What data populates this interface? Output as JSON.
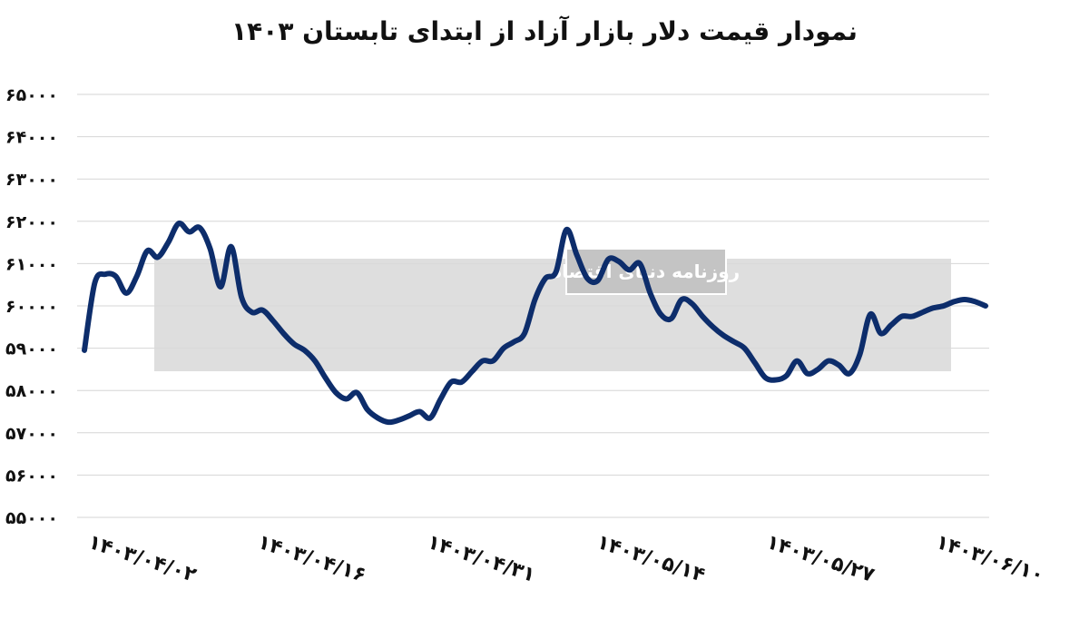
{
  "chart_data": {
    "type": "line",
    "title": "نمودار قیمت دلار بازار آزاد از ابتدای تابستان ۱۴۰۳",
    "xlabel": "",
    "ylabel": "",
    "ylim": [
      55000,
      65000
    ],
    "y_ticks": [
      "۶۵۰۰۰",
      "۶۴۰۰۰",
      "۶۳۰۰۰",
      "۶۲۰۰۰",
      "۶۱۰۰۰",
      "۶۰۰۰۰",
      "۵۹۰۰۰",
      "۵۸۰۰۰",
      "۵۷۰۰۰",
      "۵۶۰۰۰",
      "۵۵۰۰۰"
    ],
    "x_ticks": [
      "۱۴۰۳/۰۴/۰۲",
      "۱۴۰۳/۰۴/۱۶",
      "۱۴۰۳/۰۴/۳۱",
      "۱۴۰۳/۰۵/۱۴",
      "۱۴۰۳/۰۵/۲۷",
      "۱۴۰۳/۰۶/۱۰"
    ],
    "grid": true,
    "line_color": "#0d2d6b",
    "series": [
      {
        "name": "",
        "values": [
          58950,
          60550,
          60750,
          60700,
          60300,
          60700,
          61300,
          61150,
          61500,
          61950,
          61750,
          61850,
          61350,
          60450,
          61400,
          60200,
          59850,
          59900,
          59650,
          59350,
          59100,
          58950,
          58700,
          58300,
          57950,
          57800,
          57950,
          57550,
          57350,
          57250,
          57300,
          57400,
          57500,
          57350,
          57800,
          58200,
          58200,
          58450,
          58700,
          58700,
          59000,
          59150,
          59350,
          60150,
          60650,
          60800,
          61800,
          61200,
          60650,
          60600,
          61100,
          61050,
          60850,
          61000,
          60300,
          59800,
          59700,
          60150,
          60050,
          59750,
          59500,
          59300,
          59150,
          59000,
          58650,
          58300,
          58250,
          58350,
          58700,
          58400,
          58500,
          58700,
          58600,
          58400,
          58850,
          59800,
          59350,
          59550,
          59750,
          59750,
          59850,
          59950,
          60000,
          60100,
          60150,
          60100,
          60000
        ]
      }
    ]
  },
  "watermark": {
    "text": "روزنامه دنیای اقتصاد"
  }
}
